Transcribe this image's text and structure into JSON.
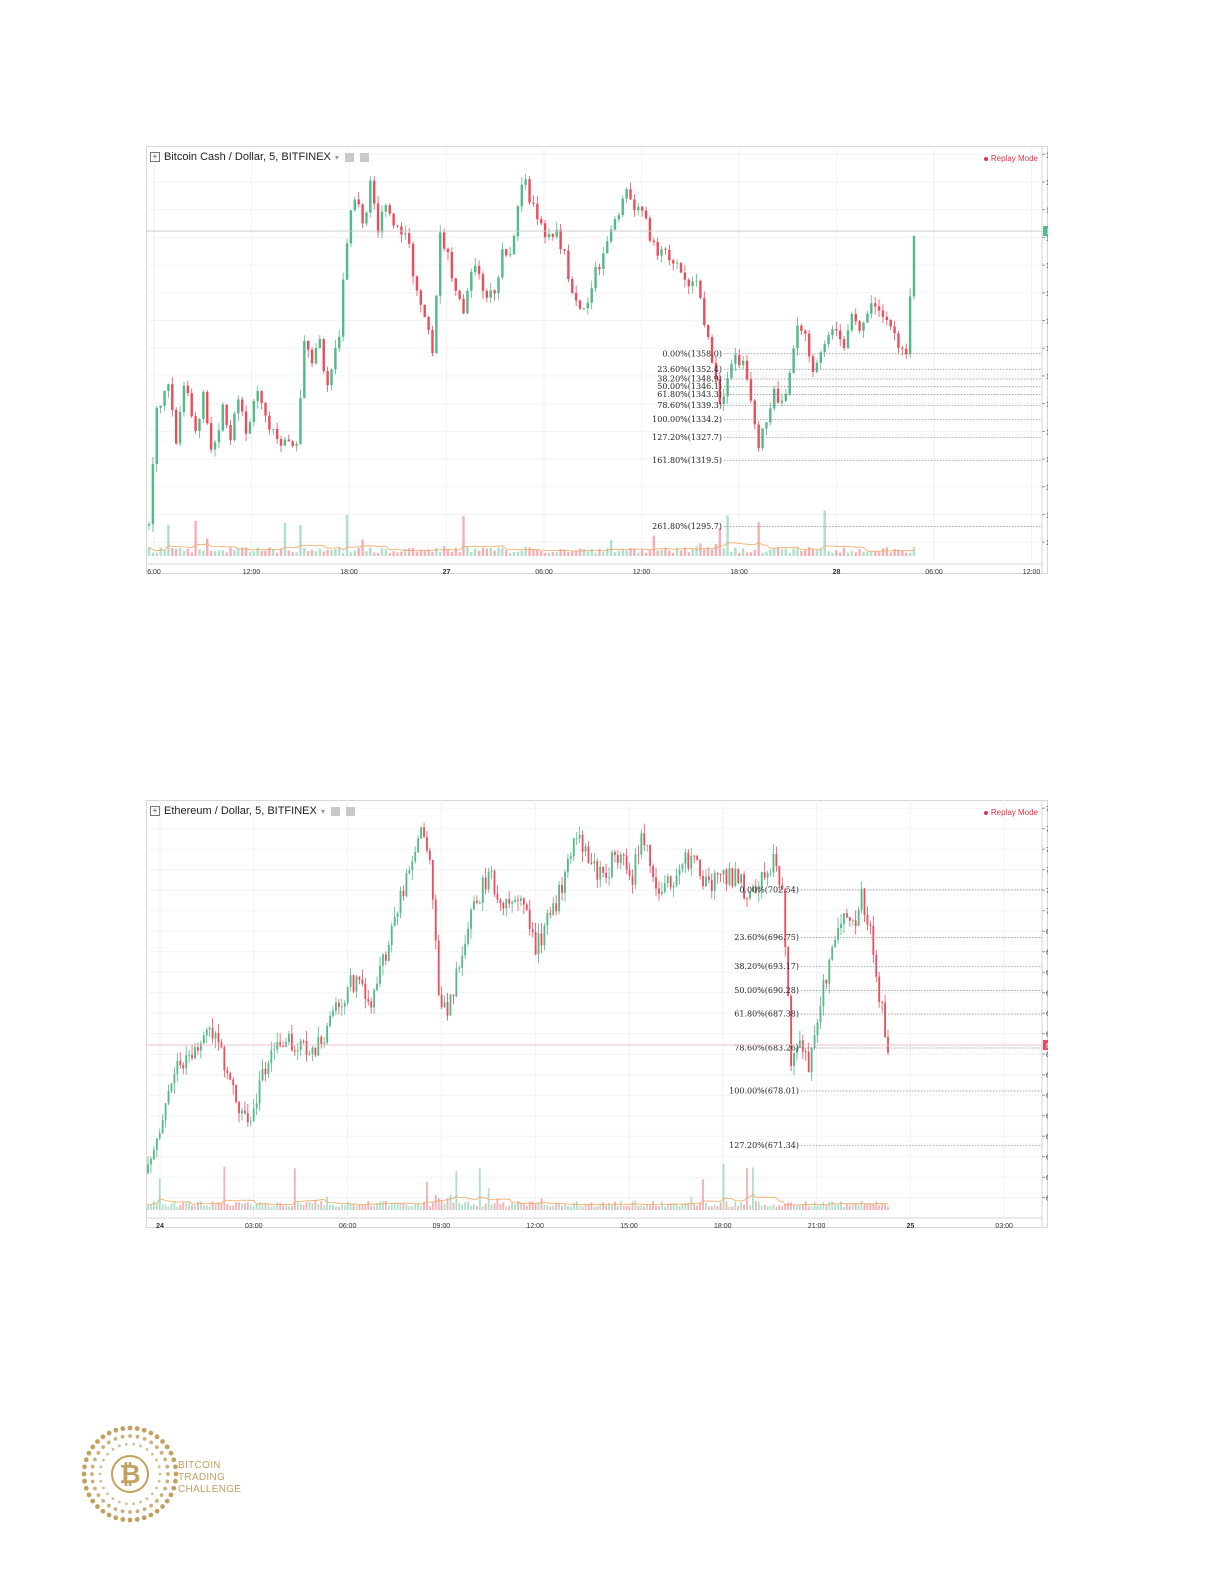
{
  "chart_data": [
    {
      "type": "candlestick",
      "title": "Bitcoin Cash / Dollar, 5, BITFINEX",
      "replay_label": "Replay Mode",
      "ylim": [
        1285,
        1433
      ],
      "y_ticks": [
        "1430.0",
        "1420.0",
        "1410.0",
        "1400.0",
        "1390.0",
        "1380.0",
        "1370.0",
        "1360.0",
        "1350.0",
        "1340.0",
        "1330.0",
        "1320.0",
        "1310.0",
        "1300.0",
        "1290.0"
      ],
      "y_tick_values": [
        1430,
        1420,
        1410,
        1400,
        1390,
        1380,
        1370,
        1360,
        1350,
        1340,
        1330,
        1320,
        1310,
        1300,
        1290
      ],
      "x_ticks": [
        "6:00",
        "12:00",
        "18:00",
        "27",
        "06:00",
        "12:00",
        "18:00",
        "28",
        "06:00",
        "12:00"
      ],
      "last_price": "1402.3",
      "last_price_value": 1402.3,
      "fib_levels": [
        {
          "label": "0.00%(1358.0)",
          "value": 1358.0
        },
        {
          "label": "23.60%(1352.4)",
          "value": 1352.4
        },
        {
          "label": "38.20%(1348.9)",
          "value": 1348.9
        },
        {
          "label": "50.00%(1346.1)",
          "value": 1346.1
        },
        {
          "label": "61.80%(1343.3)",
          "value": 1343.3
        },
        {
          "label": "78.60%(1339.3)",
          "value": 1339.3
        },
        {
          "label": "100.00%(1334.2)",
          "value": 1334.2
        },
        {
          "label": "127.20%(1327.7)",
          "value": 1327.7
        },
        {
          "label": "161.80%(1319.5)",
          "value": 1319.5
        },
        {
          "label": "261.80%(1295.7)",
          "value": 1295.7
        }
      ],
      "price_path": [
        [
          0,
          1296
        ],
        [
          2,
          1340
        ],
        [
          5,
          1345
        ],
        [
          7,
          1328
        ],
        [
          9,
          1348
        ],
        [
          12,
          1330
        ],
        [
          14,
          1342
        ],
        [
          16,
          1322
        ],
        [
          19,
          1338
        ],
        [
          21,
          1328
        ],
        [
          23,
          1340
        ],
        [
          25,
          1330
        ],
        [
          28,
          1344
        ],
        [
          31,
          1330
        ],
        [
          34,
          1325
        ],
        [
          38,
          1325
        ],
        [
          40,
          1363
        ],
        [
          42,
          1356
        ],
        [
          44,
          1362
        ],
        [
          46,
          1346
        ],
        [
          49,
          1365
        ],
        [
          51,
          1400
        ],
        [
          53,
          1416
        ],
        [
          55,
          1405
        ],
        [
          57,
          1418
        ],
        [
          59,
          1402
        ],
        [
          61,
          1414
        ],
        [
          63,
          1402
        ],
        [
          65,
          1402
        ],
        [
          67,
          1396
        ],
        [
          69,
          1380
        ],
        [
          71,
          1370
        ],
        [
          73,
          1360
        ],
        [
          75,
          1400
        ],
        [
          77,
          1395
        ],
        [
          79,
          1380
        ],
        [
          81,
          1375
        ],
        [
          83,
          1390
        ],
        [
          85,
          1385
        ],
        [
          87,
          1380
        ],
        [
          89,
          1380
        ],
        [
          91,
          1395
        ],
        [
          93,
          1393
        ],
        [
          95,
          1413
        ],
        [
          97,
          1420
        ],
        [
          99,
          1410
        ],
        [
          101,
          1405
        ],
        [
          103,
          1400
        ],
        [
          105,
          1401
        ],
        [
          107,
          1395
        ],
        [
          109,
          1380
        ],
        [
          111,
          1372
        ],
        [
          113,
          1375
        ],
        [
          115,
          1390
        ],
        [
          117,
          1392
        ],
        [
          119,
          1404
        ],
        [
          121,
          1410
        ],
        [
          123,
          1416
        ],
        [
          125,
          1410
        ],
        [
          127,
          1412
        ],
        [
          129,
          1400
        ],
        [
          131,
          1395
        ],
        [
          133,
          1395
        ],
        [
          135,
          1390
        ],
        [
          137,
          1388
        ],
        [
          139,
          1380
        ],
        [
          141,
          1385
        ],
        [
          143,
          1370
        ],
        [
          145,
          1356
        ],
        [
          147,
          1340
        ],
        [
          149,
          1350
        ],
        [
          151,
          1356
        ],
        [
          153,
          1354
        ],
        [
          155,
          1340
        ],
        [
          157,
          1325
        ],
        [
          159,
          1335
        ],
        [
          161,
          1345
        ],
        [
          163,
          1340
        ],
        [
          165,
          1350
        ],
        [
          167,
          1368
        ],
        [
          169,
          1365
        ],
        [
          171,
          1350
        ],
        [
          173,
          1360
        ],
        [
          175,
          1365
        ],
        [
          177,
          1365
        ],
        [
          179,
          1362
        ],
        [
          181,
          1370
        ],
        [
          183,
          1368
        ],
        [
          185,
          1375
        ],
        [
          187,
          1375
        ],
        [
          189,
          1370
        ],
        [
          191,
          1366
        ],
        [
          193,
          1360
        ],
        [
          195,
          1358
        ],
        [
          197,
          1402
        ]
      ],
      "candle_count": 198
    },
    {
      "type": "candlestick",
      "title": "Ethereum / Dollar, 5, BITFINEX",
      "replay_label": "Replay Mode",
      "ylim": [
        663.5,
        713.5
      ],
      "y_ticks": [
        "712.50",
        "710.00",
        "707.50",
        "705.00",
        "702.50",
        "700.00",
        "697.50",
        "695.00",
        "692.50",
        "690.00",
        "687.50",
        "685.00",
        "682.50",
        "680.00",
        "677.50",
        "675.00",
        "672.50",
        "670.00",
        "667.50",
        "665.00"
      ],
      "y_tick_values": [
        712.5,
        710,
        707.5,
        705,
        702.5,
        700,
        697.5,
        695,
        692.5,
        690,
        687.5,
        685,
        682.5,
        680,
        677.5,
        675,
        672.5,
        670,
        667.5,
        665
      ],
      "x_ticks": [
        "24",
        "03:00",
        "06:00",
        "09:00",
        "12:00",
        "15:00",
        "18:00",
        "21:00",
        "25",
        "03:00"
      ],
      "last_price": "683.62",
      "last_price_value": 683.62,
      "fib_levels": [
        {
          "label": "0.00%(702.54)",
          "value": 702.54
        },
        {
          "label": "23.60%(696.75)",
          "value": 696.75
        },
        {
          "label": "38.20%(693.17)",
          "value": 693.17
        },
        {
          "label": "50.00%(690.28)",
          "value": 690.28
        },
        {
          "label": "61.80%(687.38)",
          "value": 687.38
        },
        {
          "label": "78.60%(683.26)",
          "value": 683.26
        },
        {
          "label": "100.00%(678.01)",
          "value": 678.01
        },
        {
          "label": "127.20%(671.34)",
          "value": 671.34
        }
      ],
      "price_path": [
        [
          0,
          668
        ],
        [
          3,
          673
        ],
        [
          6,
          676
        ],
        [
          9,
          681
        ],
        [
          12,
          682
        ],
        [
          15,
          683
        ],
        [
          18,
          684
        ],
        [
          21,
          685
        ],
        [
          24,
          684
        ],
        [
          27,
          679
        ],
        [
          30,
          677
        ],
        [
          33,
          675
        ],
        [
          36,
          675
        ],
        [
          39,
          680
        ],
        [
          42,
          683
        ],
        [
          45,
          684
        ],
        [
          48,
          684
        ],
        [
          51,
          683
        ],
        [
          54,
          683
        ],
        [
          57,
          683
        ],
        [
          60,
          685
        ],
        [
          63,
          688
        ],
        [
          66,
          689
        ],
        [
          69,
          691
        ],
        [
          72,
          692
        ],
        [
          75,
          688
        ],
        [
          78,
          691
        ],
        [
          81,
          695
        ],
        [
          84,
          699
        ],
        [
          87,
          703
        ],
        [
          90,
          706
        ],
        [
          93,
          709
        ],
        [
          96,
          706
        ],
        [
          99,
          690
        ],
        [
          102,
          688
        ],
        [
          105,
          692
        ],
        [
          108,
          697
        ],
        [
          111,
          700
        ],
        [
          114,
          703
        ],
        [
          117,
          704
        ],
        [
          120,
          701
        ],
        [
          123,
          700
        ],
        [
          126,
          701
        ],
        [
          129,
          700
        ],
        [
          132,
          695
        ],
        [
          135,
          698
        ],
        [
          138,
          700
        ],
        [
          141,
          703
        ],
        [
          144,
          707
        ],
        [
          147,
          709
        ],
        [
          150,
          707
        ],
        [
          153,
          705
        ],
        [
          156,
          704
        ],
        [
          159,
          707
        ],
        [
          162,
          706
        ],
        [
          165,
          704
        ],
        [
          168,
          709
        ],
        [
          171,
          706
        ],
        [
          174,
          702
        ],
        [
          177,
          704
        ],
        [
          180,
          704
        ],
        [
          183,
          706
        ],
        [
          186,
          706
        ],
        [
          189,
          703
        ],
        [
          192,
          703
        ],
        [
          195,
          705
        ],
        [
          198,
          704
        ],
        [
          201,
          704
        ],
        [
          204,
          702
        ],
        [
          207,
          703
        ],
        [
          210,
          704
        ],
        [
          213,
          706
        ],
        [
          216,
          702
        ],
        [
          219,
          682
        ],
        [
          222,
          685
        ],
        [
          225,
          681
        ],
        [
          228,
          687
        ],
        [
          231,
          692
        ],
        [
          234,
          696
        ],
        [
          237,
          699
        ],
        [
          240,
          698
        ],
        [
          243,
          702
        ],
        [
          246,
          697
        ],
        [
          249,
          690
        ],
        [
          252,
          683
        ]
      ],
      "candle_count": 253
    }
  ],
  "logo": {
    "line1": "BITCOIN",
    "line2": "TRADING",
    "line3": "CHALLENGE",
    "gold": "#c2a060"
  },
  "colors": {
    "up": "#53b987",
    "down": "#eb4d5c",
    "btc_price_tag": "#53b987",
    "eth_price_tag": "#eb4d5c"
  }
}
